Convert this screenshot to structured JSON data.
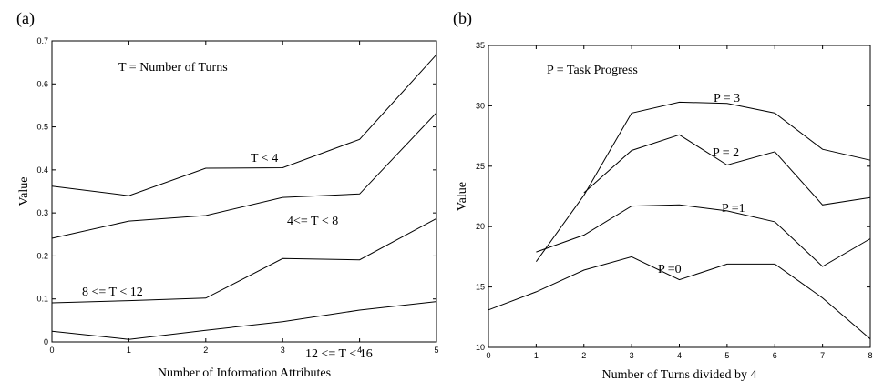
{
  "chart_data": [
    {
      "type": "line",
      "panel_label": "(a)",
      "xlabel": "Number of Information Attributes",
      "ylabel": "Value",
      "xlim": [
        0,
        5
      ],
      "ylim": [
        0,
        0.7
      ],
      "xticks": [
        "0",
        "1",
        "2",
        "3",
        "4",
        "5"
      ],
      "yticks": [
        "0",
        "0.1",
        "0.2",
        "0.3",
        "0.4",
        "0.5",
        "0.6",
        "0.7"
      ],
      "annotation": "T = Number of Turns",
      "grid": false,
      "series": [
        {
          "name": "T < 4",
          "x": [
            0,
            1,
            2,
            3,
            4,
            5
          ],
          "values": [
            0.362,
            0.34,
            0.404,
            0.405,
            0.471,
            0.668
          ]
        },
        {
          "name": "4<= T < 8",
          "x": [
            0,
            1,
            2,
            3,
            4,
            5
          ],
          "values": [
            0.241,
            0.281,
            0.294,
            0.336,
            0.344,
            0.533
          ]
        },
        {
          "name": "8 <= T < 12",
          "x": [
            0,
            1,
            2,
            3,
            4,
            5
          ],
          "values": [
            0.091,
            0.096,
            0.102,
            0.194,
            0.191,
            0.287
          ]
        },
        {
          "name": "12 <= T < 16",
          "x": [
            0,
            1,
            2,
            3,
            4,
            5
          ],
          "values": [
            0.025,
            0.006,
            0.027,
            0.047,
            0.074,
            0.094
          ]
        }
      ]
    },
    {
      "type": "line",
      "panel_label": "(b)",
      "xlabel": "Number of Turns divided by 4",
      "ylabel": "Value",
      "xlim": [
        0,
        8
      ],
      "ylim": [
        10,
        35
      ],
      "xticks": [
        "0",
        "1",
        "2",
        "3",
        "4",
        "5",
        "6",
        "7",
        "8"
      ],
      "yticks": [
        "10",
        "15",
        "20",
        "25",
        "30",
        "35"
      ],
      "annotation": "P = Task Progress",
      "grid": false,
      "series": [
        {
          "name": "P = 3",
          "x": [
            1,
            2,
            3,
            4,
            5,
            6,
            7,
            8
          ],
          "values": [
            17.1,
            22.6,
            29.4,
            30.3,
            30.2,
            29.4,
            26.4,
            25.5
          ]
        },
        {
          "name": "P = 2",
          "x": [
            2,
            3,
            4,
            5,
            6,
            7,
            8
          ],
          "values": [
            22.8,
            26.3,
            27.6,
            25.1,
            26.2,
            21.8,
            22.4
          ]
        },
        {
          "name": "P =1",
          "x": [
            1,
            2,
            3,
            4,
            5,
            6,
            7,
            8
          ],
          "values": [
            17.9,
            19.3,
            21.7,
            21.8,
            21.3,
            20.4,
            16.7,
            19.0
          ]
        },
        {
          "name": "P =0",
          "x": [
            0,
            1,
            2,
            3,
            4,
            5,
            6,
            7,
            8
          ],
          "values": [
            13.1,
            14.6,
            16.4,
            17.5,
            15.6,
            16.9,
            16.9,
            14.1,
            10.7
          ]
        }
      ]
    }
  ]
}
